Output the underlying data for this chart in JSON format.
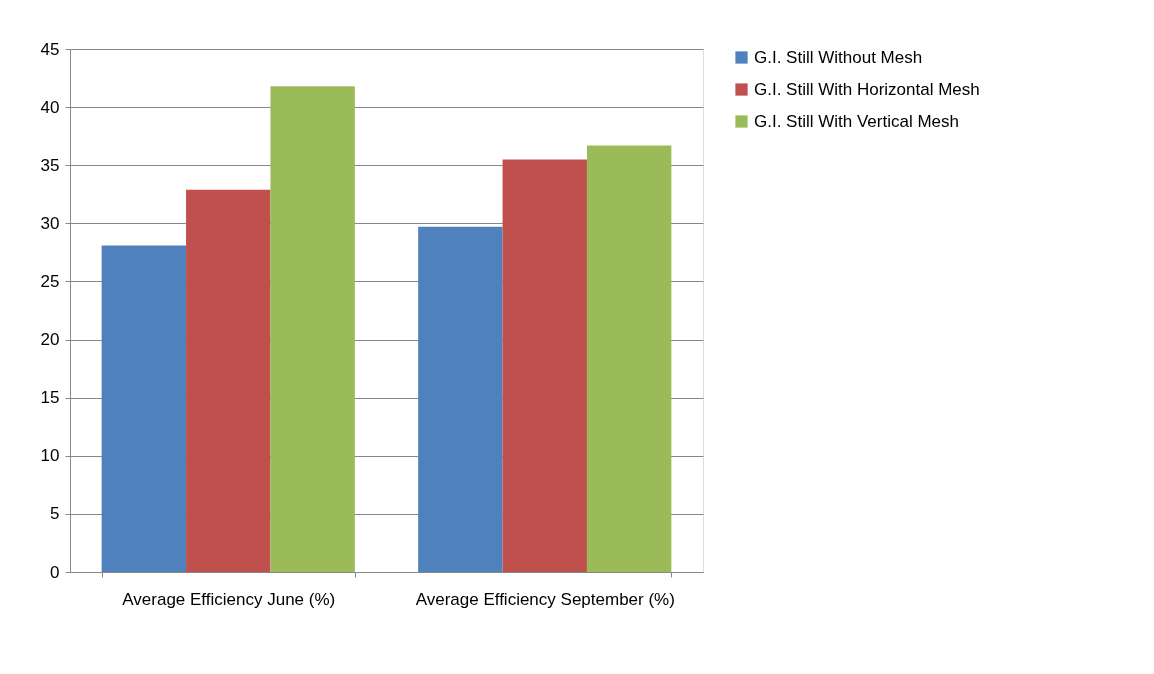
{
  "chart_data": {
    "type": "bar",
    "categories": [
      "Average Efficiency June (%)",
      "Average Efficiency September (%)"
    ],
    "series": [
      {
        "name": "G.I. Still Without Mesh",
        "color": "#4f81bd",
        "values": [
          28.1,
          29.7
        ]
      },
      {
        "name": "G.I. Still With  Horizontal  Mesh",
        "color": "#c0504d",
        "values": [
          32.9,
          35.5
        ]
      },
      {
        "name": "G.I. Still With Vertical Mesh",
        "color": "#9bbb59",
        "values": [
          41.8,
          36.7
        ]
      }
    ],
    "ylim": [
      0,
      45
    ],
    "yticks": [
      0,
      5,
      10,
      15,
      20,
      25,
      30,
      35,
      40,
      45
    ],
    "grid": "y",
    "legend": "right"
  }
}
